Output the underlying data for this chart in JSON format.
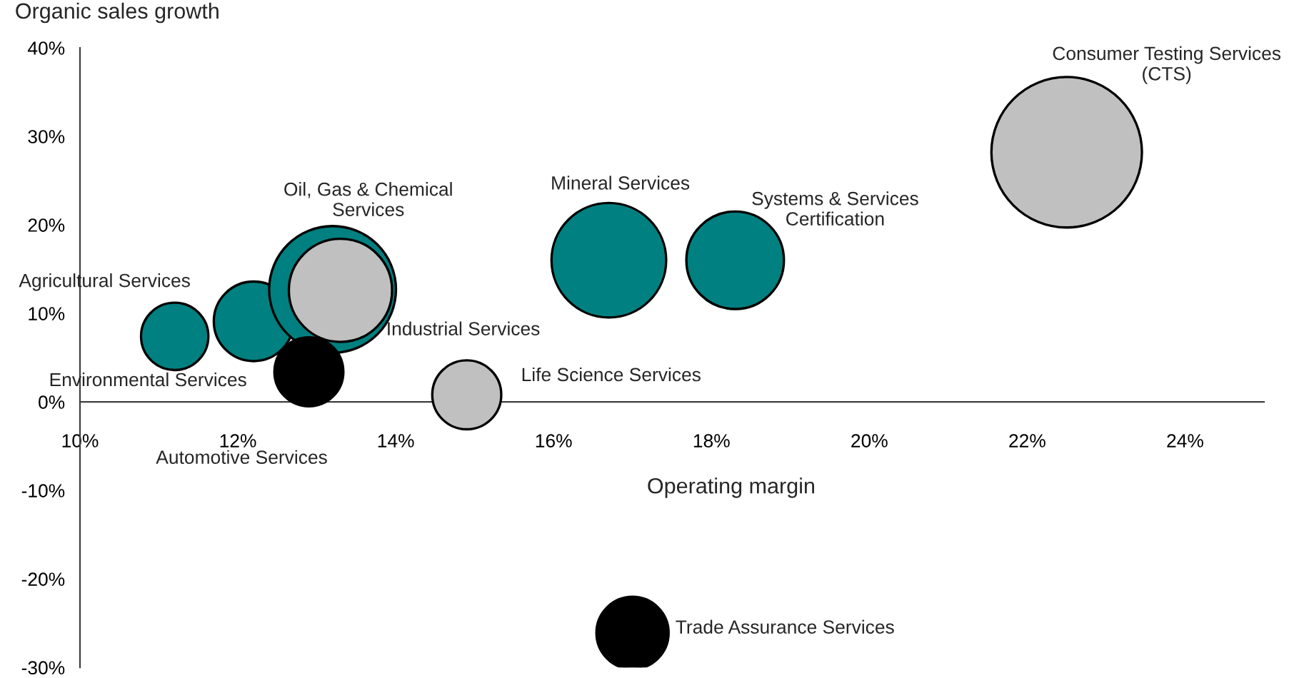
{
  "chart_data": {
    "type": "bubble",
    "xlabel": "Operating margin",
    "ylabel": "Organic sales growth",
    "xlim": [
      10,
      25
    ],
    "ylim": [
      -30,
      40
    ],
    "xticks": [
      {
        "value": 10,
        "label": "10%"
      },
      {
        "value": 12,
        "label": "12%"
      },
      {
        "value": 14,
        "label": "14%"
      },
      {
        "value": 16,
        "label": "16%"
      },
      {
        "value": 18,
        "label": "18%"
      },
      {
        "value": 20,
        "label": "20%"
      },
      {
        "value": 22,
        "label": "22%"
      },
      {
        "value": 24,
        "label": "24%"
      }
    ],
    "yticks": [
      {
        "value": -30,
        "label": "-30%"
      },
      {
        "value": -20,
        "label": "-20%"
      },
      {
        "value": -10,
        "label": "-10%"
      },
      {
        "value": 0,
        "label": "0%"
      },
      {
        "value": 10,
        "label": "10%"
      },
      {
        "value": 20,
        "label": "20%"
      },
      {
        "value": 30,
        "label": "30%"
      },
      {
        "value": 40,
        "label": "40%"
      }
    ],
    "grid": false,
    "legend": false,
    "series": [
      {
        "name": "Agricultural Services",
        "color": "#008080",
        "x": [
          11.2
        ],
        "values": [
          7.4
        ],
        "sizes": [
          0.2
        ]
      },
      {
        "name": "Environmental Services",
        "color": "#008080",
        "x": [
          12.2
        ],
        "values": [
          9.1
        ],
        "sizes": [
          0.28
        ]
      },
      {
        "name": "Oil, Gas & Chemical\nServices",
        "color": "#008080",
        "x": [
          13.2
        ],
        "values": [
          12.7
        ],
        "sizes": [
          0.71
        ]
      },
      {
        "name": "Industrial Services",
        "color": "#c0c0c0",
        "x": [
          13.3
        ],
        "values": [
          12.6
        ],
        "sizes": [
          0.47
        ]
      },
      {
        "name": "Automotive Services",
        "color": "#000000",
        "x": [
          12.9
        ],
        "values": [
          3.4
        ],
        "sizes": [
          0.21
        ]
      },
      {
        "name": "Life Science Services",
        "color": "#c0c0c0",
        "x": [
          14.9
        ],
        "values": [
          0.8
        ],
        "sizes": [
          0.21
        ]
      },
      {
        "name": "Mineral Services",
        "color": "#008080",
        "x": [
          16.7
        ],
        "values": [
          16.0
        ],
        "sizes": [
          0.58
        ]
      },
      {
        "name": "Systems & Services\nCertification",
        "color": "#008080",
        "x": [
          18.3
        ],
        "values": [
          16.0
        ],
        "sizes": [
          0.42
        ]
      },
      {
        "name": "Trade Assurance Services",
        "color": "#000000",
        "x": [
          17.0
        ],
        "values": [
          -26.1
        ],
        "sizes": [
          0.23
        ]
      },
      {
        "name": "Consumer Testing Services\n(CTS)",
        "color": "#c0c0c0",
        "x": [
          22.5
        ],
        "values": [
          28.2
        ],
        "sizes": [
          1
        ]
      }
    ]
  }
}
